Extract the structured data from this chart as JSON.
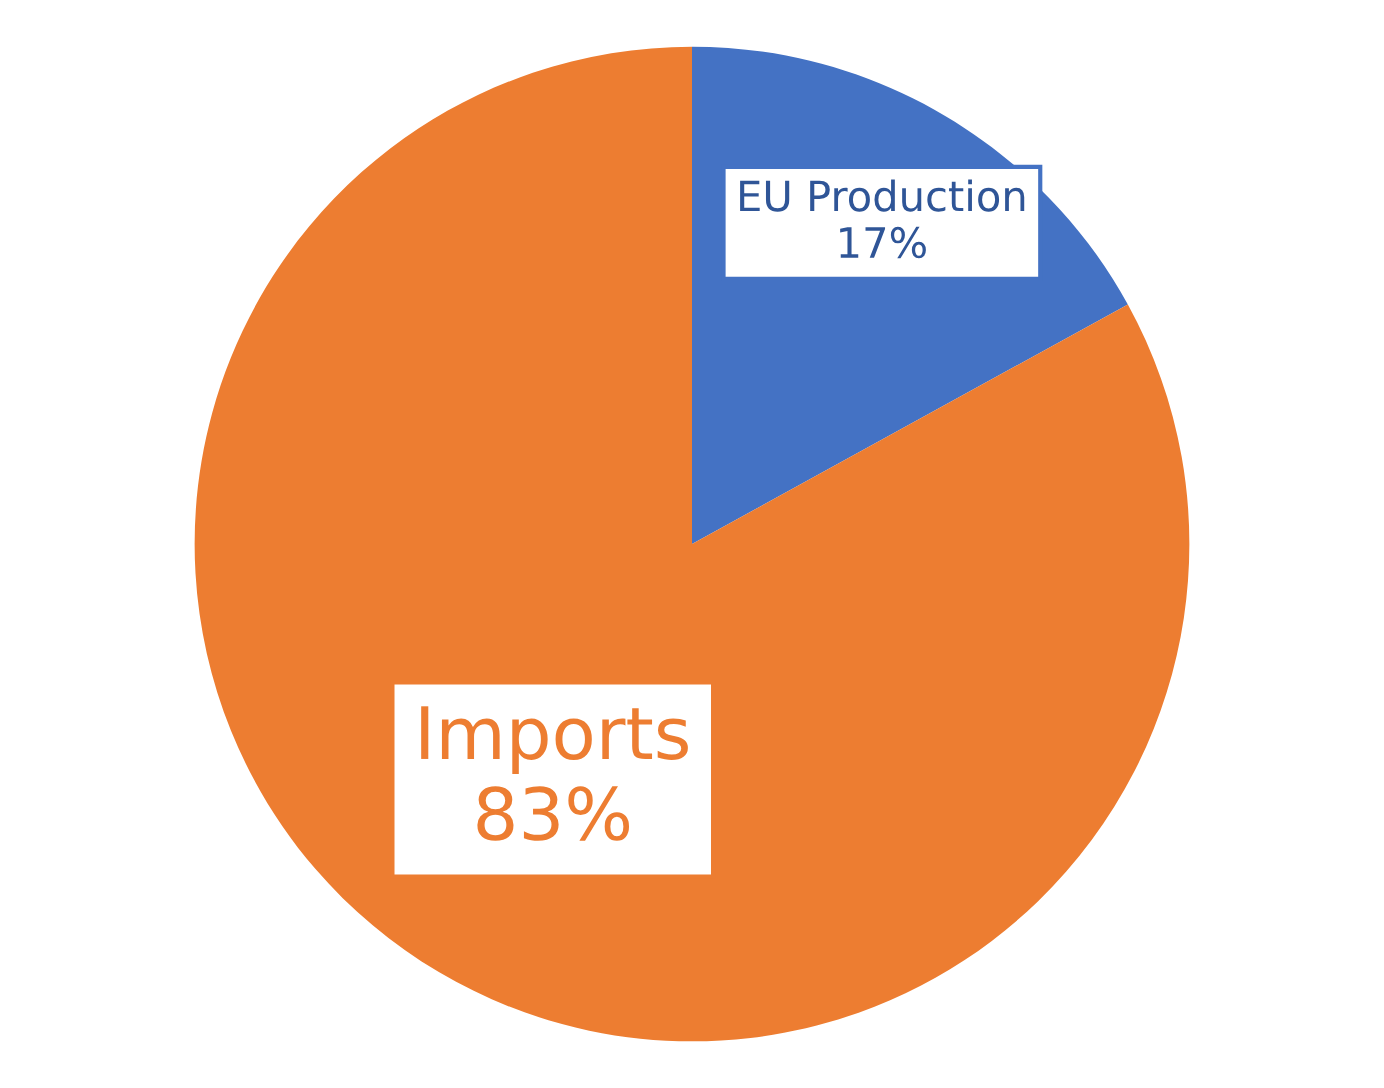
{
  "chart_data": {
    "type": "pie",
    "categories": [
      "EU Production",
      "Imports"
    ],
    "values": [
      17,
      83
    ],
    "colors": [
      "#4472c4",
      "#ed7d31"
    ],
    "value_labels": [
      "17%",
      "83%"
    ]
  }
}
